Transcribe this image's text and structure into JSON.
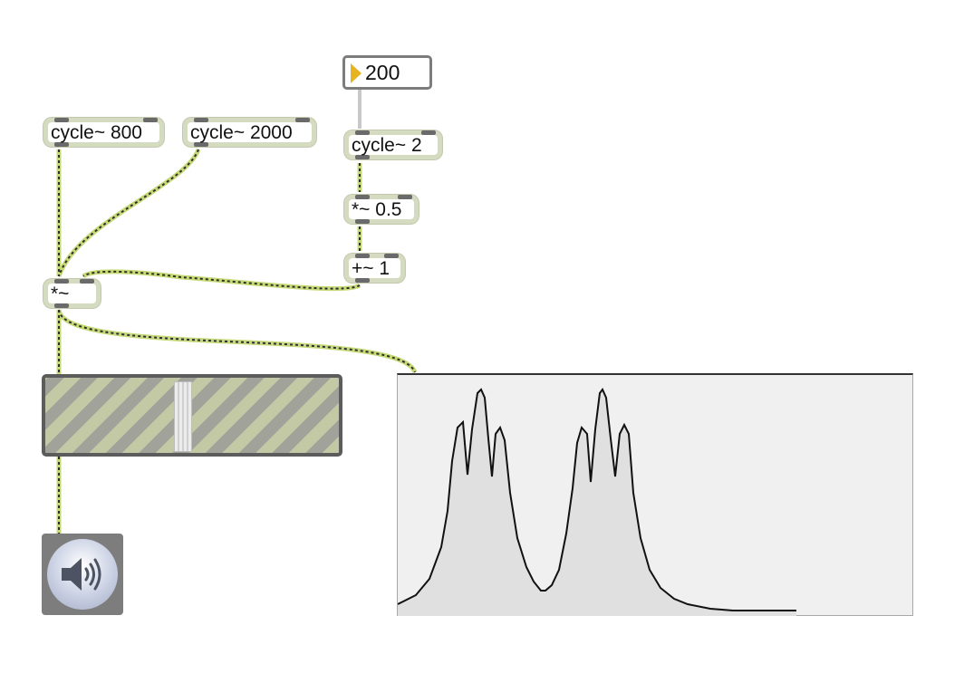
{
  "patcher": {
    "objects": {
      "cycle_800": "cycle~ 800",
      "cycle_2000": "cycle~ 2000",
      "cycle_2": "cycle~ 2",
      "times_half": "*~ 0.5",
      "plus_one": "+~ 1",
      "times": "*~"
    },
    "number_box": {
      "value": "200",
      "accent_color": "#e6b422"
    },
    "gain_slider": {
      "level": 0.47
    },
    "dac": {
      "icon": "speaker-icon"
    },
    "spectroscope": {
      "plot_type": "spectrum"
    },
    "colors": {
      "signal_cord": "#c6d977",
      "signal_dash": "#2e2e2e",
      "control_cord": "#c8c8c8",
      "object_border": "#d5dbc0",
      "gain_stripes": [
        "#c3c9a5",
        "#a1a39a"
      ],
      "spectrum_fill": "#e0e0e0"
    }
  }
}
